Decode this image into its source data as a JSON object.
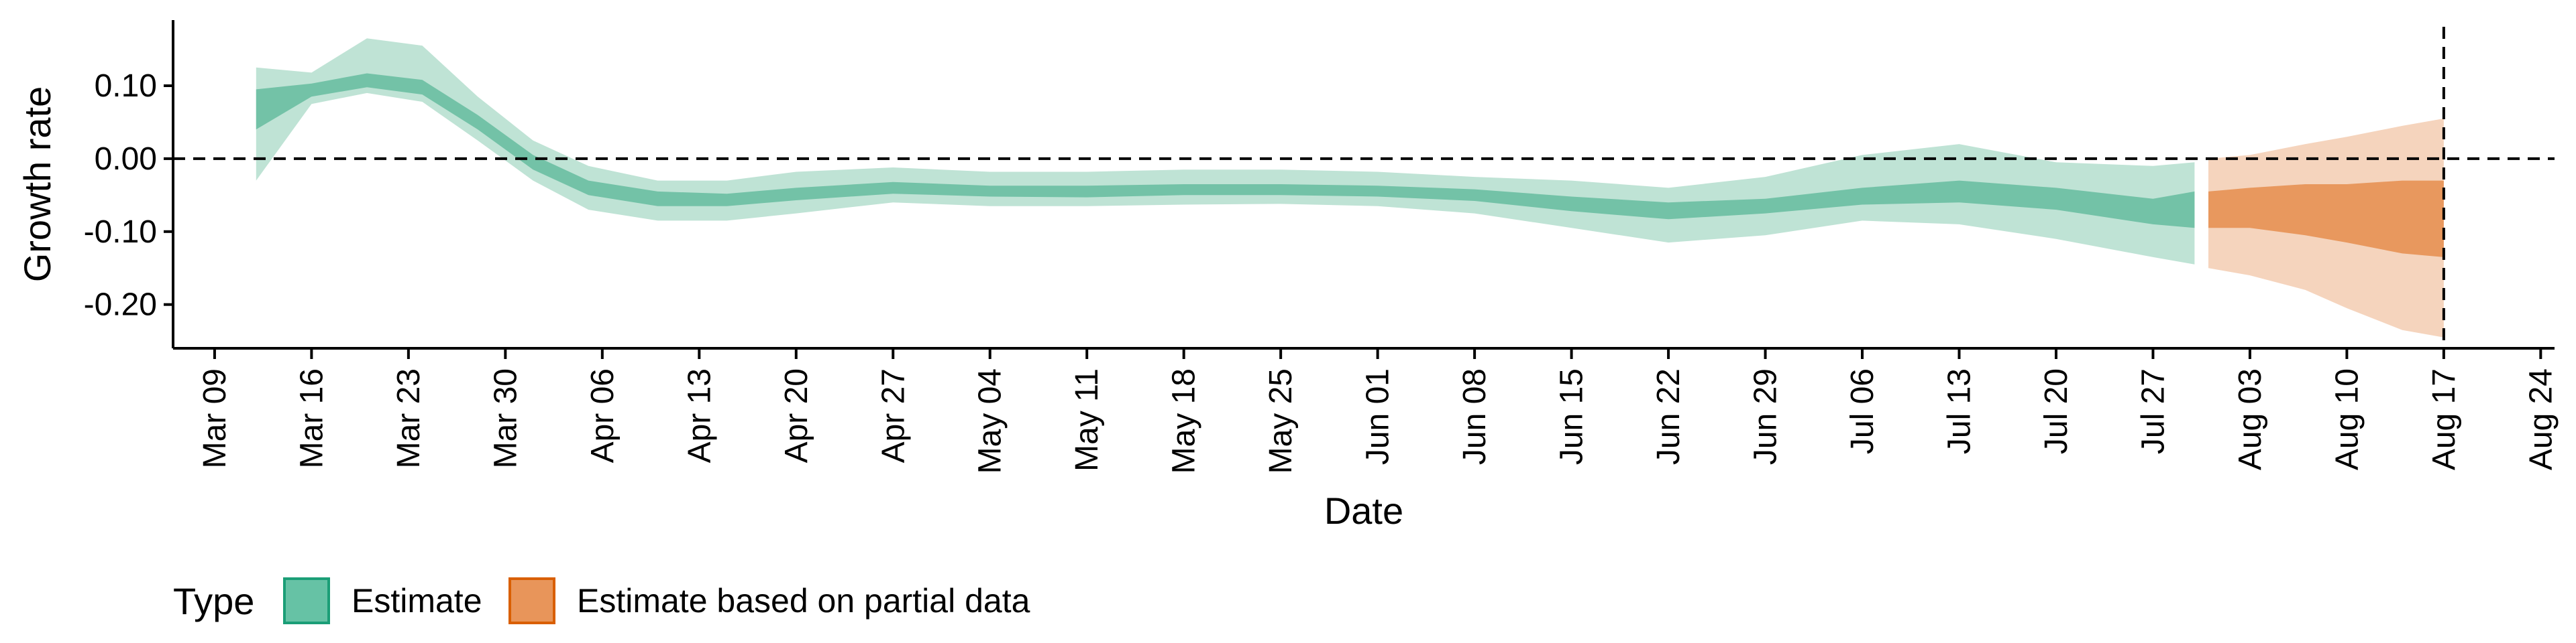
{
  "chart_data": {
    "type": "area",
    "xlabel": "Date",
    "ylabel": "Growth rate",
    "x_range": [
      "2020-03-06",
      "2020-08-25"
    ],
    "ylim": [
      -0.26,
      0.19
    ],
    "y_ticks": [
      0.1,
      0.0,
      -0.1,
      -0.2
    ],
    "y_tick_labels": [
      "0.10",
      "0.00",
      "-0.10",
      "-0.20"
    ],
    "x_ticks": [
      "2020-03-09",
      "2020-03-16",
      "2020-03-23",
      "2020-03-30",
      "2020-04-06",
      "2020-04-13",
      "2020-04-20",
      "2020-04-27",
      "2020-05-04",
      "2020-05-11",
      "2020-05-18",
      "2020-05-25",
      "2020-06-01",
      "2020-06-08",
      "2020-06-15",
      "2020-06-22",
      "2020-06-29",
      "2020-07-06",
      "2020-07-13",
      "2020-07-20",
      "2020-07-27",
      "2020-08-03",
      "2020-08-10",
      "2020-08-17",
      "2020-08-24"
    ],
    "x_tick_labels": [
      "Mar 09",
      "Mar 16",
      "Mar 23",
      "Mar 30",
      "Apr 06",
      "Apr 13",
      "Apr 20",
      "Apr 27",
      "May 04",
      "May 11",
      "May 18",
      "May 25",
      "Jun 01",
      "Jun 08",
      "Jun 15",
      "Jun 22",
      "Jun 29",
      "Jul 06",
      "Jul 13",
      "Jul 20",
      "Jul 27",
      "Aug 03",
      "Aug 10",
      "Aug 17",
      "Aug 24"
    ],
    "reference_lines": {
      "horizontal_y": 0.0,
      "vertical_x": "2020-08-17",
      "style": "dashed"
    },
    "grid": false,
    "legend": {
      "title": "Type",
      "position": "bottom-left",
      "entries": [
        {
          "label": "Estimate",
          "color": "#66c2a5",
          "border": "#1b9e77"
        },
        {
          "label": "Estimate based on partial data",
          "color": "#e8955a",
          "border": "#d95f02"
        }
      ]
    },
    "series": [
      {
        "name": "Estimate",
        "color_outer": "#bfe3d5",
        "color_inner": "#73c2a7",
        "points": [
          {
            "x": "2020-03-12",
            "lo90": -0.03,
            "lo50": 0.04,
            "hi50": 0.095,
            "hi90": 0.125
          },
          {
            "x": "2020-03-16",
            "lo90": 0.075,
            "lo50": 0.085,
            "hi50": 0.103,
            "hi90": 0.118
          },
          {
            "x": "2020-03-20",
            "lo90": 0.09,
            "lo50": 0.098,
            "hi50": 0.117,
            "hi90": 0.165
          },
          {
            "x": "2020-03-24",
            "lo90": 0.078,
            "lo50": 0.088,
            "hi50": 0.108,
            "hi90": 0.155
          },
          {
            "x": "2020-03-28",
            "lo90": 0.025,
            "lo50": 0.04,
            "hi50": 0.06,
            "hi90": 0.085
          },
          {
            "x": "2020-04-01",
            "lo90": -0.03,
            "lo50": -0.015,
            "hi50": 0.005,
            "hi90": 0.025
          },
          {
            "x": "2020-04-05",
            "lo90": -0.07,
            "lo50": -0.05,
            "hi50": -0.03,
            "hi90": -0.01
          },
          {
            "x": "2020-04-10",
            "lo90": -0.085,
            "lo50": -0.065,
            "hi50": -0.045,
            "hi90": -0.03
          },
          {
            "x": "2020-04-15",
            "lo90": -0.085,
            "lo50": -0.065,
            "hi50": -0.048,
            "hi90": -0.03
          },
          {
            "x": "2020-04-20",
            "lo90": -0.075,
            "lo50": -0.057,
            "hi50": -0.04,
            "hi90": -0.018
          },
          {
            "x": "2020-04-27",
            "lo90": -0.06,
            "lo50": -0.048,
            "hi50": -0.032,
            "hi90": -0.012
          },
          {
            "x": "2020-05-04",
            "lo90": -0.065,
            "lo50": -0.052,
            "hi50": -0.037,
            "hi90": -0.018
          },
          {
            "x": "2020-05-11",
            "lo90": -0.065,
            "lo50": -0.053,
            "hi50": -0.037,
            "hi90": -0.018
          },
          {
            "x": "2020-05-18",
            "lo90": -0.063,
            "lo50": -0.05,
            "hi50": -0.035,
            "hi90": -0.015
          },
          {
            "x": "2020-05-25",
            "lo90": -0.062,
            "lo50": -0.05,
            "hi50": -0.035,
            "hi90": -0.015
          },
          {
            "x": "2020-06-01",
            "lo90": -0.065,
            "lo50": -0.052,
            "hi50": -0.037,
            "hi90": -0.018
          },
          {
            "x": "2020-06-08",
            "lo90": -0.075,
            "lo50": -0.058,
            "hi50": -0.042,
            "hi90": -0.025
          },
          {
            "x": "2020-06-15",
            "lo90": -0.095,
            "lo50": -0.072,
            "hi50": -0.052,
            "hi90": -0.03
          },
          {
            "x": "2020-06-22",
            "lo90": -0.115,
            "lo50": -0.083,
            "hi50": -0.06,
            "hi90": -0.04
          },
          {
            "x": "2020-06-29",
            "lo90": -0.105,
            "lo50": -0.075,
            "hi50": -0.055,
            "hi90": -0.025
          },
          {
            "x": "2020-07-06",
            "lo90": -0.085,
            "lo50": -0.063,
            "hi50": -0.04,
            "hi90": 0.005
          },
          {
            "x": "2020-07-13",
            "lo90": -0.09,
            "lo50": -0.06,
            "hi50": -0.03,
            "hi90": 0.02
          },
          {
            "x": "2020-07-20",
            "lo90": -0.11,
            "lo50": -0.07,
            "hi50": -0.04,
            "hi90": -0.005
          },
          {
            "x": "2020-07-27",
            "lo90": -0.135,
            "lo50": -0.09,
            "hi50": -0.055,
            "hi90": -0.01
          },
          {
            "x": "2020-07-30",
            "lo90": -0.145,
            "lo50": -0.095,
            "hi50": -0.045,
            "hi90": -0.005
          }
        ]
      },
      {
        "name": "Estimate based on partial data",
        "color_outer": "#f5d4bd",
        "color_inner": "#e8985e",
        "points": [
          {
            "x": "2020-07-31",
            "lo90": -0.15,
            "lo50": -0.095,
            "hi50": -0.045,
            "hi90": 0.0
          },
          {
            "x": "2020-08-03",
            "lo90": -0.16,
            "lo50": -0.095,
            "hi50": -0.04,
            "hi90": 0.005
          },
          {
            "x": "2020-08-07",
            "lo90": -0.18,
            "lo50": -0.105,
            "hi50": -0.035,
            "hi90": 0.02
          },
          {
            "x": "2020-08-10",
            "lo90": -0.205,
            "lo50": -0.115,
            "hi50": -0.035,
            "hi90": 0.03
          },
          {
            "x": "2020-08-14",
            "lo90": -0.235,
            "lo50": -0.13,
            "hi50": -0.03,
            "hi90": 0.045
          },
          {
            "x": "2020-08-17",
            "lo90": -0.245,
            "lo50": -0.135,
            "hi50": -0.03,
            "hi90": 0.055
          }
        ]
      }
    ]
  }
}
